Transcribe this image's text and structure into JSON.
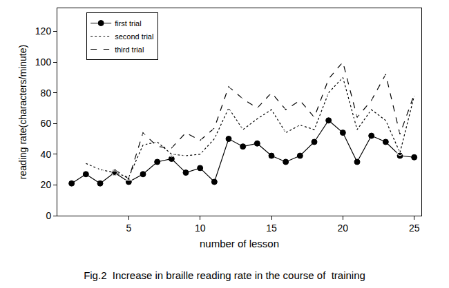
{
  "chart_data": {
    "type": "line",
    "title": "Fig.2  Increase in braille reading rate in the course of  training",
    "x_label": "number of lesson",
    "y_label": "reading rate(characters/minute)",
    "x": [
      1,
      2,
      3,
      4,
      5,
      6,
      7,
      8,
      9,
      10,
      11,
      12,
      13,
      14,
      15,
      16,
      17,
      18,
      19,
      20,
      21,
      22,
      23,
      24,
      25
    ],
    "series": [
      {
        "name": "first trial",
        "color": "#000000",
        "marker": "circle",
        "line_style": "solid",
        "values": [
          21,
          27,
          21,
          28,
          22,
          27,
          35,
          37,
          28,
          31,
          22,
          50,
          45,
          47,
          39,
          35,
          39,
          48,
          62,
          54,
          35,
          52,
          48,
          39,
          38
        ]
      },
      {
        "name": "second trial",
        "color": "#000000",
        "marker": "circle-open",
        "line_style": "dot",
        "values": [
          null,
          34,
          30,
          28,
          25,
          46,
          48,
          40,
          39,
          40,
          50,
          70,
          56,
          63,
          69,
          54,
          59,
          56,
          80,
          90,
          56,
          69,
          62,
          41,
          78
        ]
      },
      {
        "name": "third trial",
        "color": "#000000",
        "marker": "triangle-up-open",
        "line_style": "dash",
        "values": [
          null,
          null,
          null,
          30,
          24,
          54,
          45,
          44,
          54,
          49,
          57,
          84,
          76,
          70,
          80,
          69,
          75,
          64,
          89,
          100,
          64,
          75,
          92,
          53,
          79
        ]
      }
    ],
    "xlim": [
      0,
      25.5
    ],
    "xticks": [
      5,
      10,
      15,
      20,
      25
    ],
    "ylim": [
      0,
      135
    ],
    "yticks": [
      0,
      20,
      40,
      60,
      80,
      100,
      120
    ],
    "grid": false,
    "legend": "upper left"
  }
}
